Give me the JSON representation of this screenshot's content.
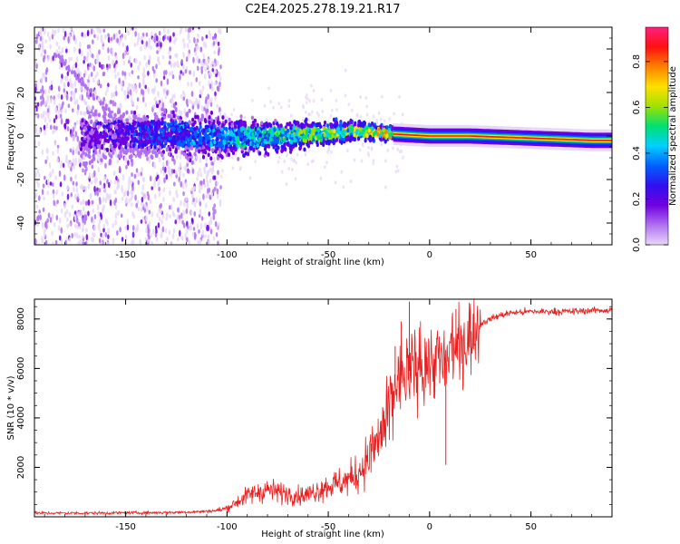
{
  "chart_data": [
    {
      "type": "heatmap",
      "title": "C2E4.2025.278.19.21.R17",
      "xlabel": "Height of straight line (km)",
      "ylabel": "Frequency (Hz)",
      "xlim": [
        -195,
        90
      ],
      "ylim": [
        -50,
        50
      ],
      "xticks": [
        -150,
        -100,
        -50,
        0,
        50
      ],
      "yticks": [
        -40,
        -20,
        0,
        20,
        40
      ],
      "xtick_labels": [
        "-150",
        "-100",
        "-50",
        "0",
        "50"
      ],
      "ytick_labels": [
        "-40",
        "-20",
        "0",
        "20",
        "40"
      ],
      "colorbar": {
        "label": "Normalized spectral amplitude",
        "range": [
          0.0,
          0.95
        ],
        "ticks": [
          0.0,
          0.2,
          0.4,
          0.6,
          0.8
        ],
        "tick_labels": [
          "0.0",
          "0.2",
          "0.4",
          "0.6",
          "0.8"
        ],
        "colors": [
          "#e8d8f8",
          "#b070f0",
          "#7000e0",
          "#3010f0",
          "#0060ff",
          "#00d0ff",
          "#00e070",
          "#a0e000",
          "#ffe000",
          "#ff8000",
          "#ff1010",
          "#ff2080"
        ]
      },
      "ridge": {
        "x": [
          -170,
          -150,
          -125,
          -100,
          -75,
          -50,
          -35,
          -20,
          -10,
          0,
          20,
          50,
          80,
          90
        ],
        "y": [
          0,
          0.5,
          1,
          -1,
          0,
          1,
          2.5,
          1,
          0.5,
          0,
          0,
          -1,
          -2,
          -2
        ]
      }
    },
    {
      "type": "line",
      "xlabel": "Height of straight line (km)",
      "ylabel": "SNR (10 * v/v)",
      "xlim": [
        -195,
        90
      ],
      "ylim": [
        0,
        8800
      ],
      "xticks": [
        -150,
        -100,
        -50,
        0,
        50
      ],
      "yticks": [
        2000,
        4000,
        6000,
        8000
      ],
      "xtick_labels": [
        "-150",
        "-100",
        "-50",
        "0",
        "50"
      ],
      "ytick_labels": [
        "2000",
        "4000",
        "6000",
        "8000"
      ],
      "series": [
        {
          "name": "SNR",
          "color": "#e82020",
          "x": [
            -195,
            -170,
            -150,
            -130,
            -115,
            -105,
            -100,
            -95,
            -90,
            -85,
            -80,
            -75,
            -70,
            -65,
            -60,
            -55,
            -50,
            -45,
            -40,
            -35,
            -30,
            -25,
            -20,
            -17,
            -14,
            -10,
            -5,
            0,
            5,
            8,
            10,
            15,
            20,
            25,
            30,
            35,
            40,
            50,
            60,
            70,
            80,
            90
          ],
          "y": [
            150,
            150,
            160,
            170,
            200,
            250,
            350,
            600,
            850,
            1000,
            1100,
            1000,
            950,
            850,
            900,
            1100,
            1250,
            1350,
            1500,
            1800,
            2400,
            3200,
            4200,
            5300,
            5700,
            5900,
            6100,
            6300,
            6400,
            6000,
            6600,
            7000,
            7300,
            7800,
            8000,
            8150,
            8250,
            8300,
            8300,
            8300,
            8350,
            8350
          ]
        }
      ],
      "spikes": {
        "x": [
          -17,
          -14,
          -10,
          -5,
          5,
          8,
          13,
          17
        ],
        "y": [
          6900,
          7900,
          8700,
          6000,
          5400,
          2100,
          8400,
          7600
        ]
      }
    }
  ]
}
